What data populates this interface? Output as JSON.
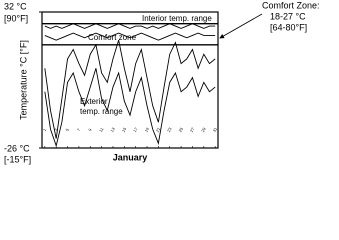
{
  "chart_data": {
    "type": "line",
    "y_label": "Temperature °C [°F]",
    "x_label": "January",
    "x": [
      1,
      2,
      3,
      4,
      5,
      6,
      7,
      8,
      9,
      10,
      11,
      12,
      13,
      14,
      15,
      16,
      17,
      18,
      19,
      20,
      21,
      22,
      23,
      24,
      25,
      26,
      27,
      28,
      29,
      30,
      31
    ],
    "xlim": [
      0.5,
      31.5
    ],
    "xticks": [
      1,
      3,
      5,
      7,
      9,
      11,
      13,
      15,
      17,
      19,
      21,
      23,
      25,
      27,
      29,
      31
    ],
    "ylim": [
      -26,
      32
    ],
    "yticks": [
      {
        "value": 32,
        "label": "32 °C"
      },
      {
        "value": -26,
        "label": "-26 °C"
      }
    ],
    "y2lim": [
      -14.8,
      89.6
    ],
    "y2ticks": [
      {
        "value": 89.6,
        "label": "[90°F]"
      },
      {
        "value": -14.8,
        "label": "[-15°F]"
      }
    ],
    "comfort_lines": [
      18,
      27
    ],
    "series": [
      {
        "color": "#000000",
        "values": [
          26,
          25,
          26,
          25,
          26,
          27,
          26,
          25,
          26,
          27,
          26,
          25,
          26,
          27,
          26,
          25,
          26,
          26,
          25,
          26,
          25,
          26,
          27,
          26,
          25,
          26,
          27,
          26,
          25,
          26,
          26
        ]
      },
      {
        "color": "#000000",
        "values": [
          22,
          21,
          20,
          21,
          22,
          23,
          22,
          21,
          22,
          23,
          22,
          21,
          22,
          23,
          22,
          21,
          22,
          23,
          22,
          21,
          20,
          21,
          22,
          23,
          22,
          21,
          22,
          23,
          22,
          22,
          22
        ]
      },
      {
        "color": "#000000",
        "values": [
          8,
          -10,
          -22,
          -5,
          12,
          16,
          10,
          5,
          14,
          18,
          6,
          2,
          12,
          20,
          8,
          -2,
          10,
          16,
          4,
          -8,
          -15,
          0,
          14,
          19,
          10,
          12,
          16,
          8,
          14,
          10,
          12
        ]
      },
      {
        "color": "#000000",
        "values": [
          -2,
          -18,
          -25,
          -15,
          2,
          6,
          -2,
          -8,
          0,
          8,
          -5,
          -10,
          0,
          6,
          -6,
          -12,
          -2,
          4,
          -8,
          -18,
          -24,
          -10,
          2,
          6,
          -2,
          0,
          4,
          -4,
          2,
          -2,
          0
        ]
      }
    ],
    "annotations": {
      "interior": "Interior temp. range",
      "comfort": "Comfort zone",
      "exterior": [
        "Exterior",
        "temp. range"
      ],
      "comfort_note": [
        "Comfort Zone:",
        "18-27 °C",
        "[64-80°F]"
      ]
    }
  }
}
